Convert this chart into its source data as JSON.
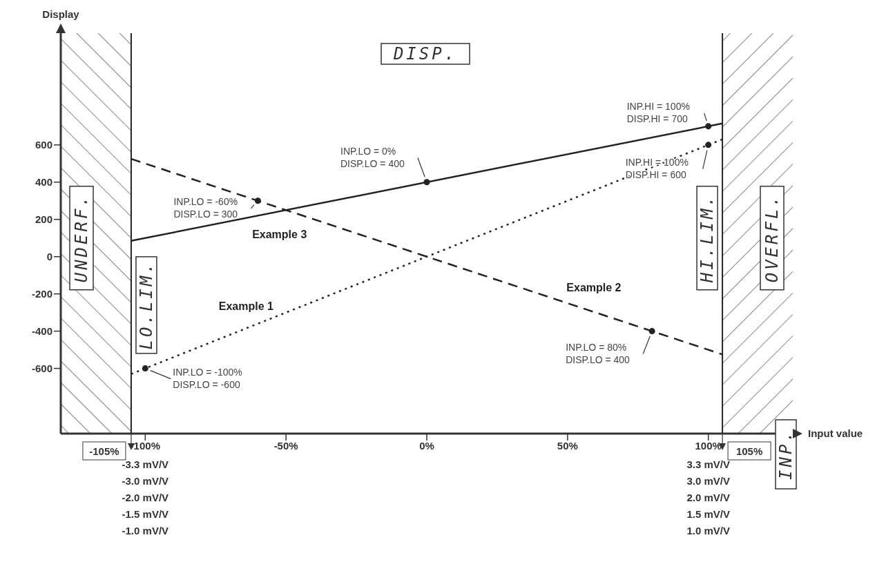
{
  "chart_data": {
    "type": "line",
    "xlabel": "Input value",
    "ylabel": "Display",
    "xlim": [
      -130,
      130
    ],
    "ylim": [
      -950,
      1200
    ],
    "xticks": [
      {
        "value": -100,
        "label": "-100%"
      },
      {
        "value": -50,
        "label": "-50%"
      },
      {
        "value": 0,
        "label": "0%"
      },
      {
        "value": 50,
        "label": "50%"
      },
      {
        "value": 100,
        "label": "100%"
      }
    ],
    "yticks": [
      -600,
      -400,
      -200,
      0,
      200,
      400,
      600
    ],
    "grid": false,
    "legend": false,
    "series": [
      {
        "name": "Example 1",
        "type": "line",
        "line_style": "dotted",
        "marker": "none",
        "color": "#222222",
        "x": [
          -105,
          105
        ],
        "values": [
          -630,
          630
        ]
      },
      {
        "name": "Example 2",
        "type": "line",
        "line_style": "dashed",
        "marker": "none",
        "color": "#222222",
        "x": [
          -105,
          105
        ],
        "values": [
          525,
          -525
        ]
      },
      {
        "name": "Example 3",
        "type": "line",
        "line_style": "solid",
        "marker": "none",
        "color": "#222222",
        "x": [
          -105,
          105
        ],
        "values": [
          85,
          715
        ]
      },
      {
        "type": "scatter",
        "marker": "circle",
        "color": "#222222",
        "x": [
          -100,
          100
        ],
        "values": [
          -600,
          600
        ]
      },
      {
        "type": "scatter",
        "marker": "circle",
        "color": "#222222",
        "x": [
          -60,
          80
        ],
        "values": [
          300,
          -400
        ]
      },
      {
        "type": "scatter",
        "marker": "circle",
        "color": "#222222",
        "x": [
          0,
          100
        ],
        "values": [
          400,
          700
        ]
      }
    ],
    "ref_lines": [
      {
        "axis": "x",
        "value": -105,
        "label": "-105%",
        "color": "#222222"
      },
      {
        "axis": "x",
        "value": 105,
        "label": "105%",
        "color": "#222222"
      }
    ],
    "bands": [
      {
        "axis": "x",
        "from": -130,
        "to": -105,
        "color": "#444444"
      },
      {
        "axis": "x",
        "from": 105,
        "to": 130,
        "color": "#444444"
      }
    ],
    "annotations": [
      "DISP.",
      "UNDERF.",
      "LO.LIM.",
      "HI.LIM.",
      "OVERFL.",
      "INP.",
      {
        "text": "INP.HI = 100%\nDISP.HI = 700",
        "x": 100,
        "y": 700
      },
      {
        "text": "INP.LO = 0%\nDISP.LO = 400",
        "x": 0,
        "y": 400
      },
      {
        "text": "INP.LO = -60%\nDISP.LO = 300",
        "x": -60,
        "y": 300
      },
      {
        "text": "INP.HI = 100%\nDISP.HI = 600",
        "x": 100,
        "y": 600
      },
      {
        "text": "INP.LO = 80%\nDISP.LO = 400",
        "x": 80,
        "y": -400
      },
      {
        "text": "INP.LO = -100%\nDISP.LO = -600",
        "x": -100,
        "y": -600
      },
      "-3.3 mV/V",
      "-3.0 mV/V",
      "-2.0 mV/V",
      "-1.5 mV/V",
      "-1.0 mV/V",
      "3.3 mV/V",
      "3.0 mV/V",
      "2.0 mV/V",
      "1.5 mV/V",
      "1.0 mV/V"
    ]
  }
}
